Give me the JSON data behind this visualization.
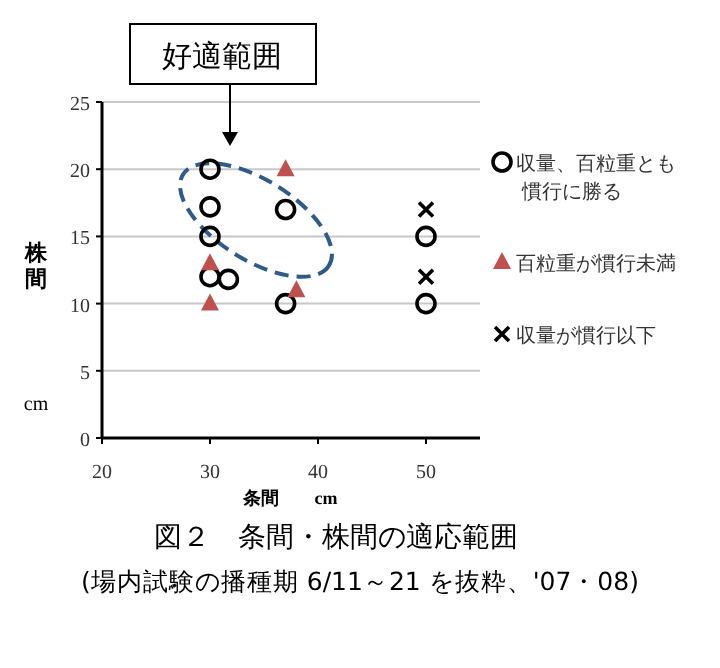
{
  "chart_data": {
    "type": "scatter",
    "title": "図２　条間・株間の適応範囲",
    "subtitle": "(場内試験の播種期 6/11～21 を抜粋、'07・08)",
    "xlabel": "条間　　cm",
    "ylabel": "株間",
    "xlim": [
      20,
      55
    ],
    "xticks": [
      20,
      30,
      40,
      50
    ],
    "ylim": [
      0,
      25
    ],
    "yticks": [
      0,
      5,
      10,
      15,
      20,
      25
    ],
    "grid": "y",
    "legend": "right",
    "annotations": [
      "好適範囲",
      "cm"
    ],
    "series": [
      {
        "name": "収量、百粒重とも慣行に勝る",
        "color": "#000000",
        "marker": "circle",
        "x": [
          30,
          30,
          30,
          30,
          31.7,
          37,
          37,
          50,
          50
        ],
        "values": [
          20,
          17.2,
          15,
          12,
          11.8,
          17,
          10,
          15,
          10
        ]
      },
      {
        "name": "百粒重が慣行未満",
        "color": "#c0504d",
        "marker": "triangle",
        "x": [
          30,
          30,
          37,
          38
        ],
        "values": [
          13,
          10,
          20,
          11
        ]
      },
      {
        "name": "収量が慣行以下",
        "color": "#000000",
        "marker": "cross",
        "x": [
          50,
          50
        ],
        "values": [
          17,
          12
        ]
      }
    ]
  }
}
